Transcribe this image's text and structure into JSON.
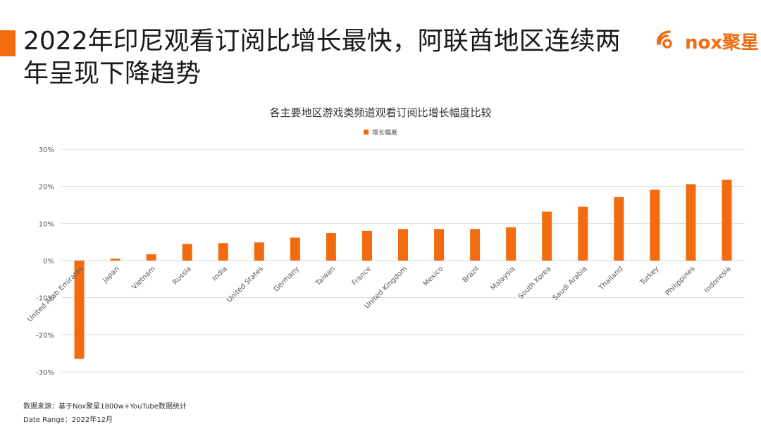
{
  "headline": "2022年印尼观看订阅比增长最快，阿联酋地区连续两年呈现下降趋势",
  "logo": {
    "text": "nox聚星"
  },
  "colors": {
    "accent": "#f26b0f",
    "bar": "#f26b0f",
    "grid": "#d9d9d9",
    "text": "#595959"
  },
  "footer": {
    "source": "数据来源：基于Nox聚星1800w+YouTube数据统计",
    "date_range": "Date Range：2022年12月"
  },
  "chart_data": {
    "type": "bar",
    "title": "各主要地区游戏类频道观看订阅比增长幅度比较",
    "legend": {
      "position": "top-center"
    },
    "ylim": [
      -30,
      30
    ],
    "yticks": [
      30,
      20,
      10,
      0,
      -10,
      -20,
      -30
    ],
    "ytick_labels": [
      "30%",
      "20%",
      "10%",
      "0%",
      "-10%",
      "-20%",
      "-30%"
    ],
    "grid": true,
    "categories": [
      "United Arab Emirates",
      "Japan",
      "Vietnam",
      "Russia",
      "India",
      "United States",
      "Germany",
      "Taiwan",
      "France",
      "United Kingdom",
      "Mexico",
      "Brazil",
      "Malaysia",
      "South Korea",
      "Saudi Arabia",
      "Thailand",
      "Turkey",
      "Philippines",
      "Indonesia"
    ],
    "series": [
      {
        "name": "增长幅度",
        "values": [
          -26.5,
          0.5,
          1.7,
          4.5,
          4.7,
          4.9,
          6.2,
          7.4,
          8.0,
          8.5,
          8.5,
          8.5,
          9.0,
          13.2,
          14.5,
          17.1,
          19.1,
          20.6,
          21.8
        ]
      }
    ]
  }
}
